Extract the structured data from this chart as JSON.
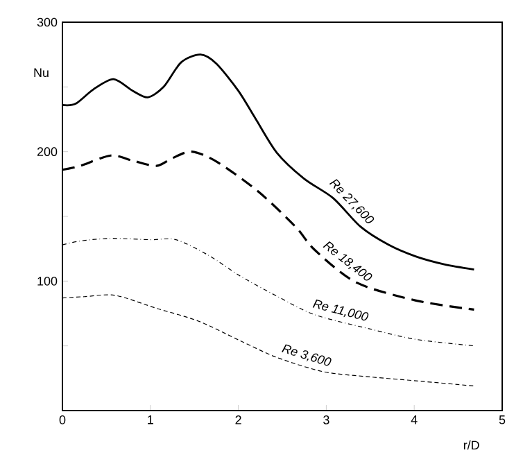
{
  "chart_data": {
    "type": "line",
    "xlabel": "r/D",
    "ylabel": "Nu",
    "xlim": [
      0,
      5
    ],
    "ylim": [
      0,
      300
    ],
    "xticks": [
      0,
      1,
      2,
      3,
      4,
      5
    ],
    "yticks": [
      {
        "value": 50,
        "label": null
      },
      100,
      {
        "value": 150,
        "label": null
      },
      200,
      {
        "value": 250,
        "label": null
      },
      300
    ],
    "grid": false,
    "marker": "none",
    "series": [
      {
        "name": "Re 27,600",
        "color": "#000000",
        "line_style": "solid",
        "x": [
          0,
          0.15,
          0.35,
          0.58,
          0.8,
          0.97,
          1.15,
          1.35,
          1.57,
          1.75,
          2.0,
          2.2,
          2.44,
          2.75,
          3.08,
          3.39,
          3.71,
          4.02,
          4.34,
          4.68
        ],
        "values": [
          236,
          237,
          248,
          256,
          247,
          242,
          250,
          269,
          275,
          268,
          247,
          225,
          199,
          179,
          164,
          142,
          128,
          119,
          113,
          109
        ]
      },
      {
        "name": "Re 18,400",
        "color": "#000000",
        "line_style": "dashed",
        "x": [
          0,
          0.2,
          0.55,
          0.8,
          1.07,
          1.25,
          1.47,
          1.76,
          2.23,
          2.65,
          2.87,
          3.34,
          4.02,
          4.68
        ],
        "values": [
          186,
          189,
          197,
          193,
          189,
          195,
          200,
          192,
          169,
          142,
          124,
          99,
          85,
          78
        ]
      },
      {
        "name": "Re 11,000",
        "color": "#000000",
        "line_style": "dashdot",
        "x": [
          0,
          0.2,
          0.55,
          1.0,
          1.29,
          1.66,
          2.02,
          2.45,
          2.87,
          3.5,
          4.02,
          4.68
        ],
        "values": [
          128,
          131,
          133,
          132,
          132,
          120,
          104,
          88,
          74,
          63,
          55,
          50
        ]
      },
      {
        "name": "Re 3,600",
        "color": "#000000",
        "line_style": "dashed",
        "x": [
          0,
          0.25,
          0.6,
          1.07,
          1.55,
          2.02,
          2.44,
          2.97,
          3.5,
          4.02,
          4.68
        ],
        "values": [
          87,
          88,
          89,
          79,
          69,
          54,
          41,
          30,
          26,
          23,
          19
        ]
      }
    ]
  }
}
